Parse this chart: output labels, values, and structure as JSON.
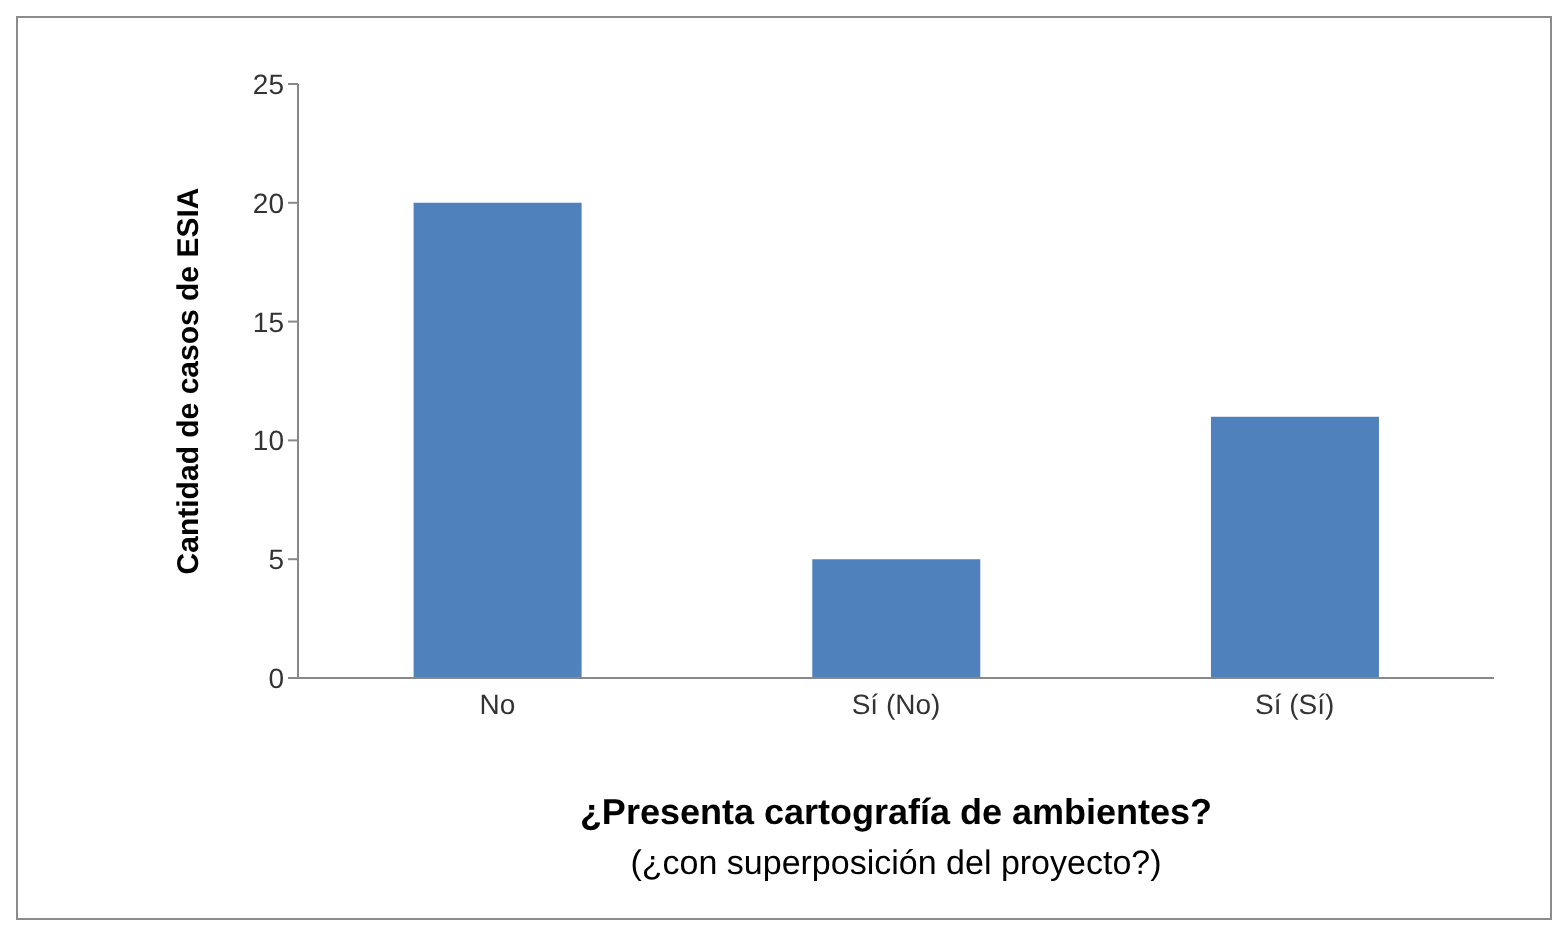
{
  "chart_data": {
    "type": "bar",
    "categories": [
      "No",
      "Sí (No)",
      "Sí (Sí)"
    ],
    "values": [
      20,
      5,
      11
    ],
    "color": "#4f81bd",
    "ylim": [
      0,
      25
    ],
    "yticks": [
      0,
      5,
      10,
      15,
      20,
      25
    ],
    "grid": false,
    "xlabel": "¿Presenta cartografía de ambientes?",
    "ylabel": "Cantidad de casos de ESIA",
    "annotations": [
      "(¿con superposición del proyecto?)"
    ]
  }
}
